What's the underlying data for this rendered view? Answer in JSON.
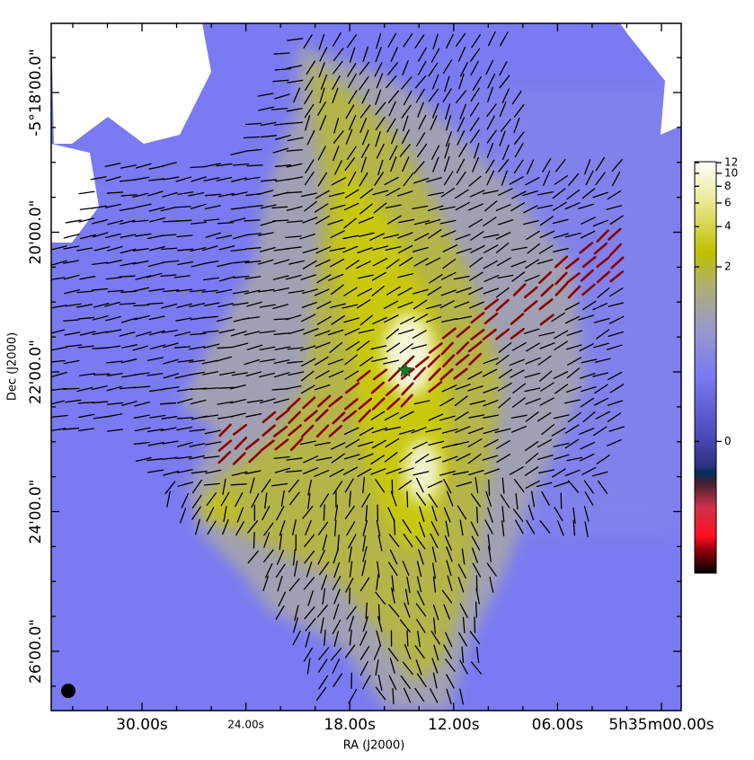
{
  "axes": {
    "x_label": "RA (J2000)",
    "y_label": "Dec (J2000)",
    "x_ticks": [
      "30.00s",
      "24.00s",
      "18.00s",
      "12.00s",
      "06.00s",
      "5h35m00.00s"
    ],
    "y_ticks": [
      "-5°18'00.0\"",
      "20'00.0\"",
      "22'00.0\"",
      "24'00.0\"",
      "26'00.0\""
    ]
  },
  "colorbar": {
    "clim": [
      -0.95,
      12.2
    ],
    "ticks": [
      12,
      10,
      8,
      6,
      4,
      2,
      0
    ]
  }
}
